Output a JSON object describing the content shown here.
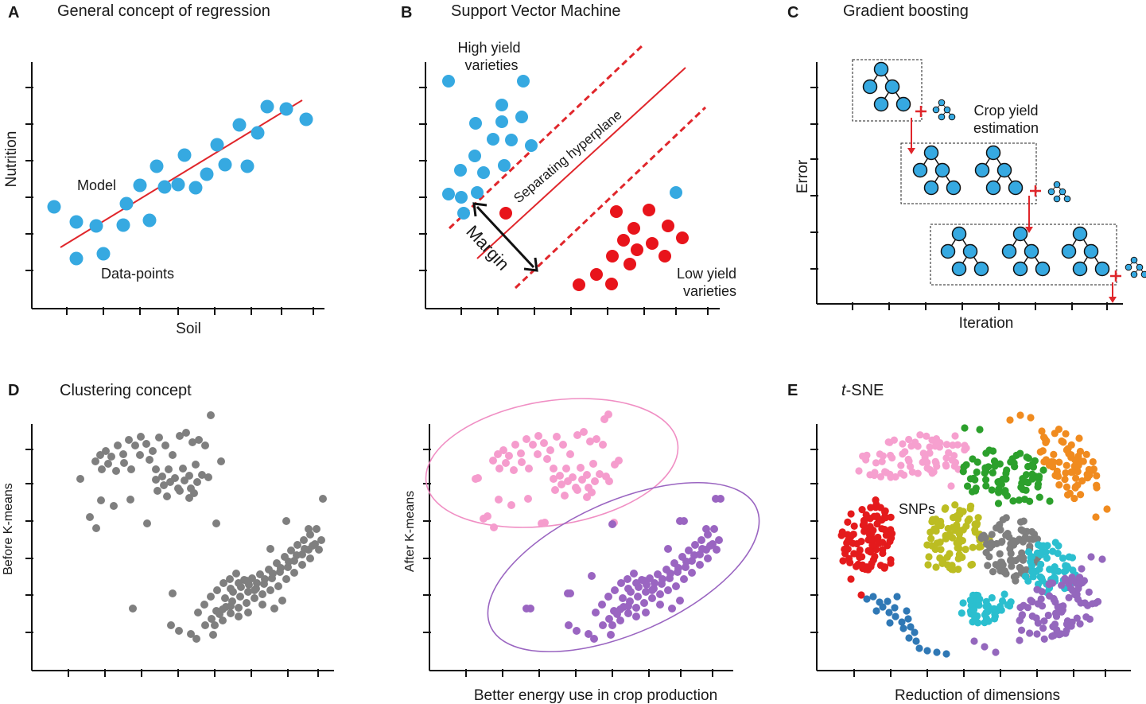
{
  "panels": [
    {
      "id": "A",
      "title": "General concept of regression",
      "xlabel": "Soil",
      "ylabel": "Nutrition",
      "annotations": {
        "model": "Model",
        "points": "Data-points"
      },
      "colors": {
        "points": "#36a9e1",
        "line": "#e0262b"
      }
    },
    {
      "id": "B",
      "title": "Support Vector Machine",
      "annotations": {
        "high": [
          "High yield",
          "varieties"
        ],
        "low": [
          "Low yield",
          "varieties"
        ],
        "hyperplane": "Separating hyperplane",
        "margin": "Margin"
      },
      "colors": {
        "high": "#36a9e1",
        "low": "#e8141b",
        "line": "#e0262b"
      }
    },
    {
      "id": "C",
      "title": "Gradient boosting",
      "xlabel": "Iteration",
      "ylabel": "Error",
      "annotations": {
        "estimate": [
          "Crop yield",
          "estimation"
        ]
      },
      "colors": {
        "node": "#36a9e1",
        "arrow": "#e0262b"
      }
    },
    {
      "id": "D",
      "title": "Clustering concept",
      "ylabel_left": "Before K-means",
      "ylabel_right": "After K-means",
      "xlabel": "Better energy use in crop production",
      "colors": {
        "before": "#7f7f7f",
        "pink": "#f59ccd",
        "purple": "#9a65c1",
        "pink_ring": "#f08fc4",
        "purple_ring": "#9a65c1"
      }
    },
    {
      "id": "E",
      "title": "t-SNE",
      "title_italic": "t",
      "title_rest": "-SNE",
      "xlabel": "Reduction of dimensions",
      "annotations": {
        "snps": "SNPs"
      },
      "colors": {
        "pink": "#f6a0cf",
        "orange": "#f08b1f",
        "green": "#2ca02c",
        "red": "#e41a1c",
        "olive": "#bcbd22",
        "gray": "#7f7f7f",
        "cyan": "#2bbfcf",
        "purple": "#9467bd",
        "blue": "#2f78b5"
      }
    }
  ]
}
